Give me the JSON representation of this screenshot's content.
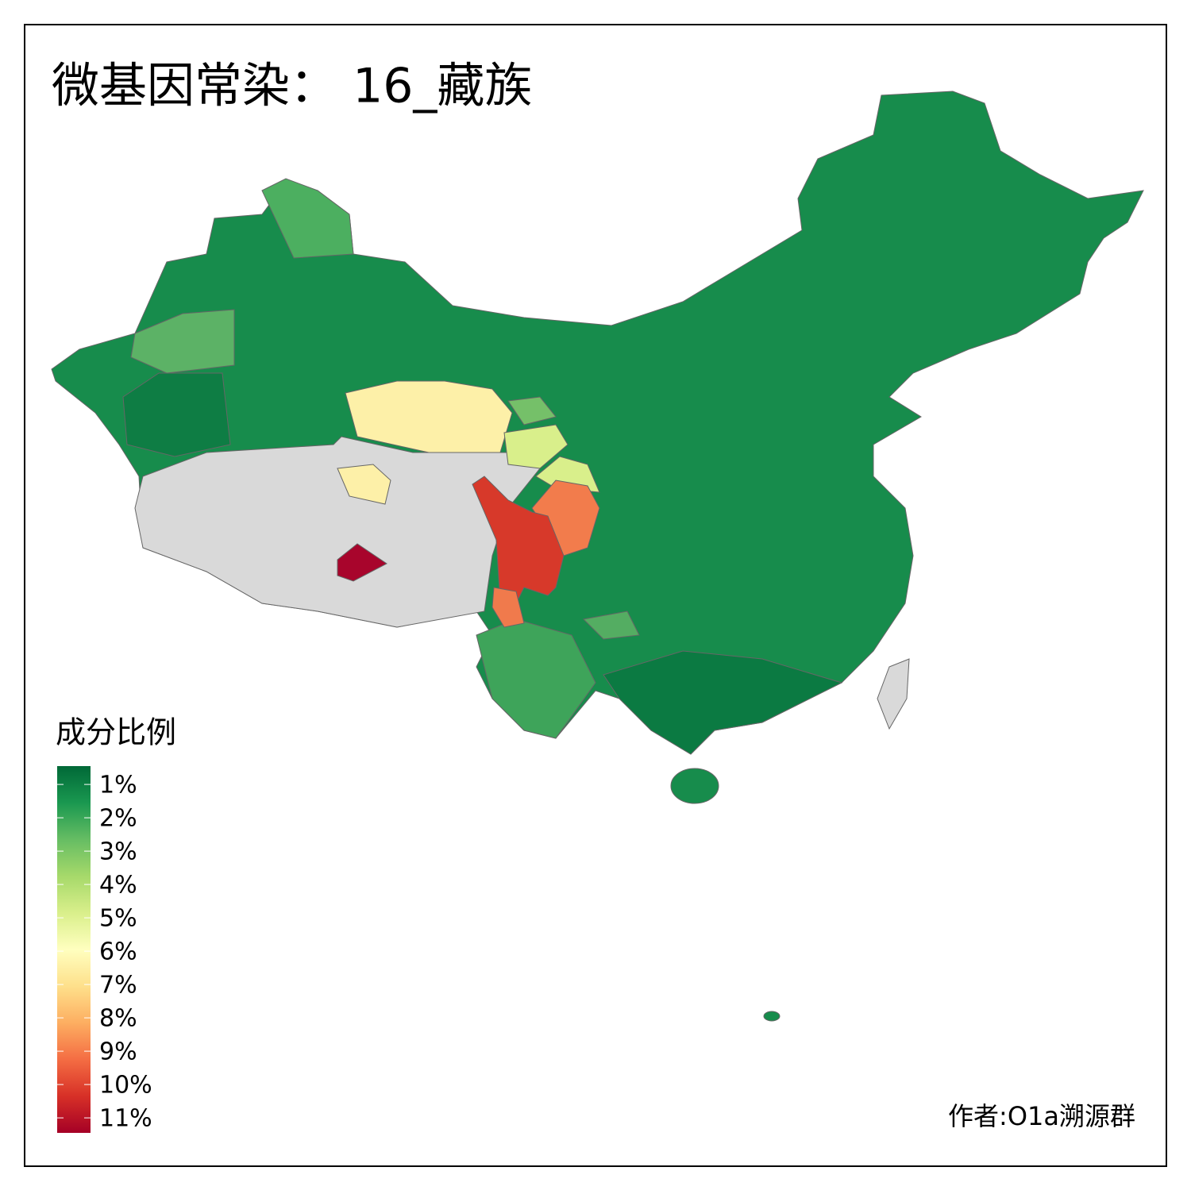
{
  "title": "微基因常染： 16_藏族",
  "legend": {
    "title": "成分比例",
    "range": [
      0.45,
      11.45
    ],
    "ticks": [
      {
        "value": 1,
        "label": "1%"
      },
      {
        "value": 2,
        "label": "2%"
      },
      {
        "value": 3,
        "label": "3%"
      },
      {
        "value": 4,
        "label": "4%"
      },
      {
        "value": 5,
        "label": "5%"
      },
      {
        "value": 6,
        "label": "6%"
      },
      {
        "value": 7,
        "label": "7%"
      },
      {
        "value": 8,
        "label": "8%"
      },
      {
        "value": 9,
        "label": "9%"
      },
      {
        "value": 10,
        "label": "10%"
      },
      {
        "value": 11,
        "label": "11%"
      }
    ],
    "colors": [
      "#006837",
      "#1a9850",
      "#66bd63",
      "#a6d96a",
      "#d9ef8b",
      "#ffffbf",
      "#fee08b",
      "#fdae61",
      "#f46d43",
      "#d73027",
      "#a50026"
    ]
  },
  "author": "作者:O1a溯源群"
}
